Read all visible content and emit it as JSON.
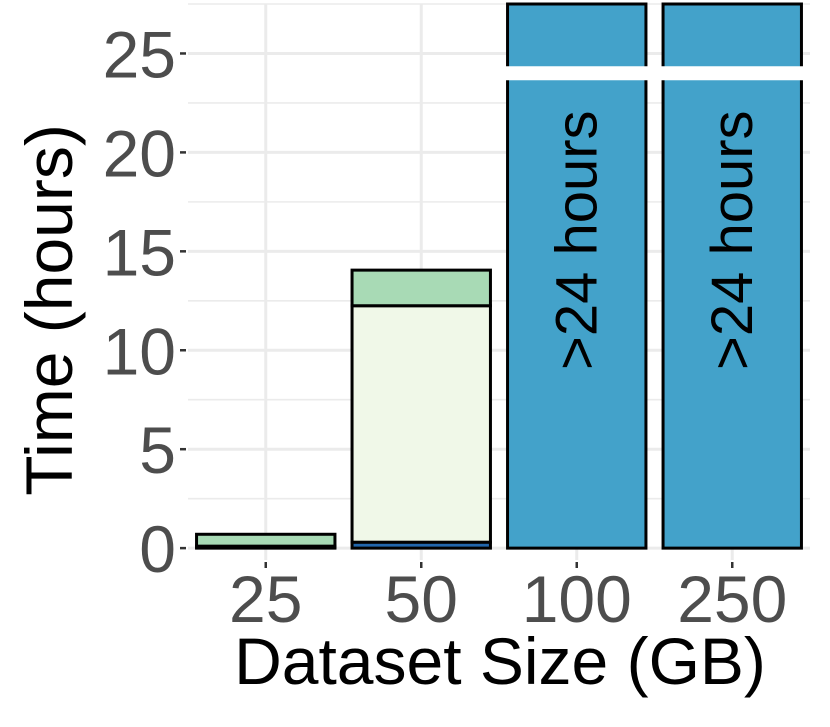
{
  "chart_data": {
    "type": "bar",
    "stacked": true,
    "title": "",
    "xlabel": "Dataset Size (GB)",
    "ylabel": "Time (hours)",
    "ylim": [
      -0.6,
      27.5
    ],
    "yticks": [
      0,
      5,
      10,
      15,
      20,
      25
    ],
    "grid": true,
    "categories": [
      "25",
      "50",
      "100",
      "250"
    ],
    "series": [
      {
        "color": "#2166ac",
        "values": [
          0.05,
          0.3,
          0,
          0
        ]
      },
      {
        "color": "#f0f8e8",
        "values": [
          0.05,
          11.95,
          0,
          0
        ]
      },
      {
        "color": "#a8dab5",
        "values": [
          0.6,
          1.8,
          0,
          0
        ]
      }
    ],
    "exceeded": {
      "color": "#43a2ca",
      "label": ">24 hours",
      "categories": [
        "100",
        "250"
      ],
      "break_at": 24,
      "display_top": 27.5
    }
  }
}
